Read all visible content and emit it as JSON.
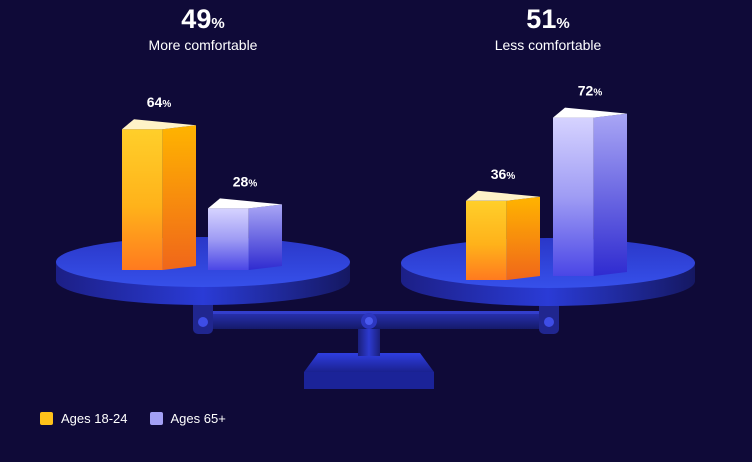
{
  "chart_data": {
    "type": "bar",
    "groups": [
      {
        "big_value": "49",
        "big_unit": "%",
        "caption": "More comfortable"
      },
      {
        "big_value": "51",
        "big_unit": "%",
        "caption": "Less comfortable"
      }
    ],
    "series": [
      {
        "name": "Ages 18-24",
        "color": "#ffc21a",
        "values": [
          64,
          36
        ]
      },
      {
        "name": "Ages 65+",
        "color": "#a3a0f5",
        "values": [
          28,
          72
        ]
      }
    ],
    "unit": "%"
  },
  "legend": [
    {
      "label": "Ages 18-24",
      "color": "#ffc21a"
    },
    {
      "label": "Ages 65+",
      "color": "#a3a0f5"
    }
  ],
  "colors": {
    "background": "#0f0a38",
    "scale": "#2a3bd6",
    "scale_dark": "#1a1f78"
  }
}
